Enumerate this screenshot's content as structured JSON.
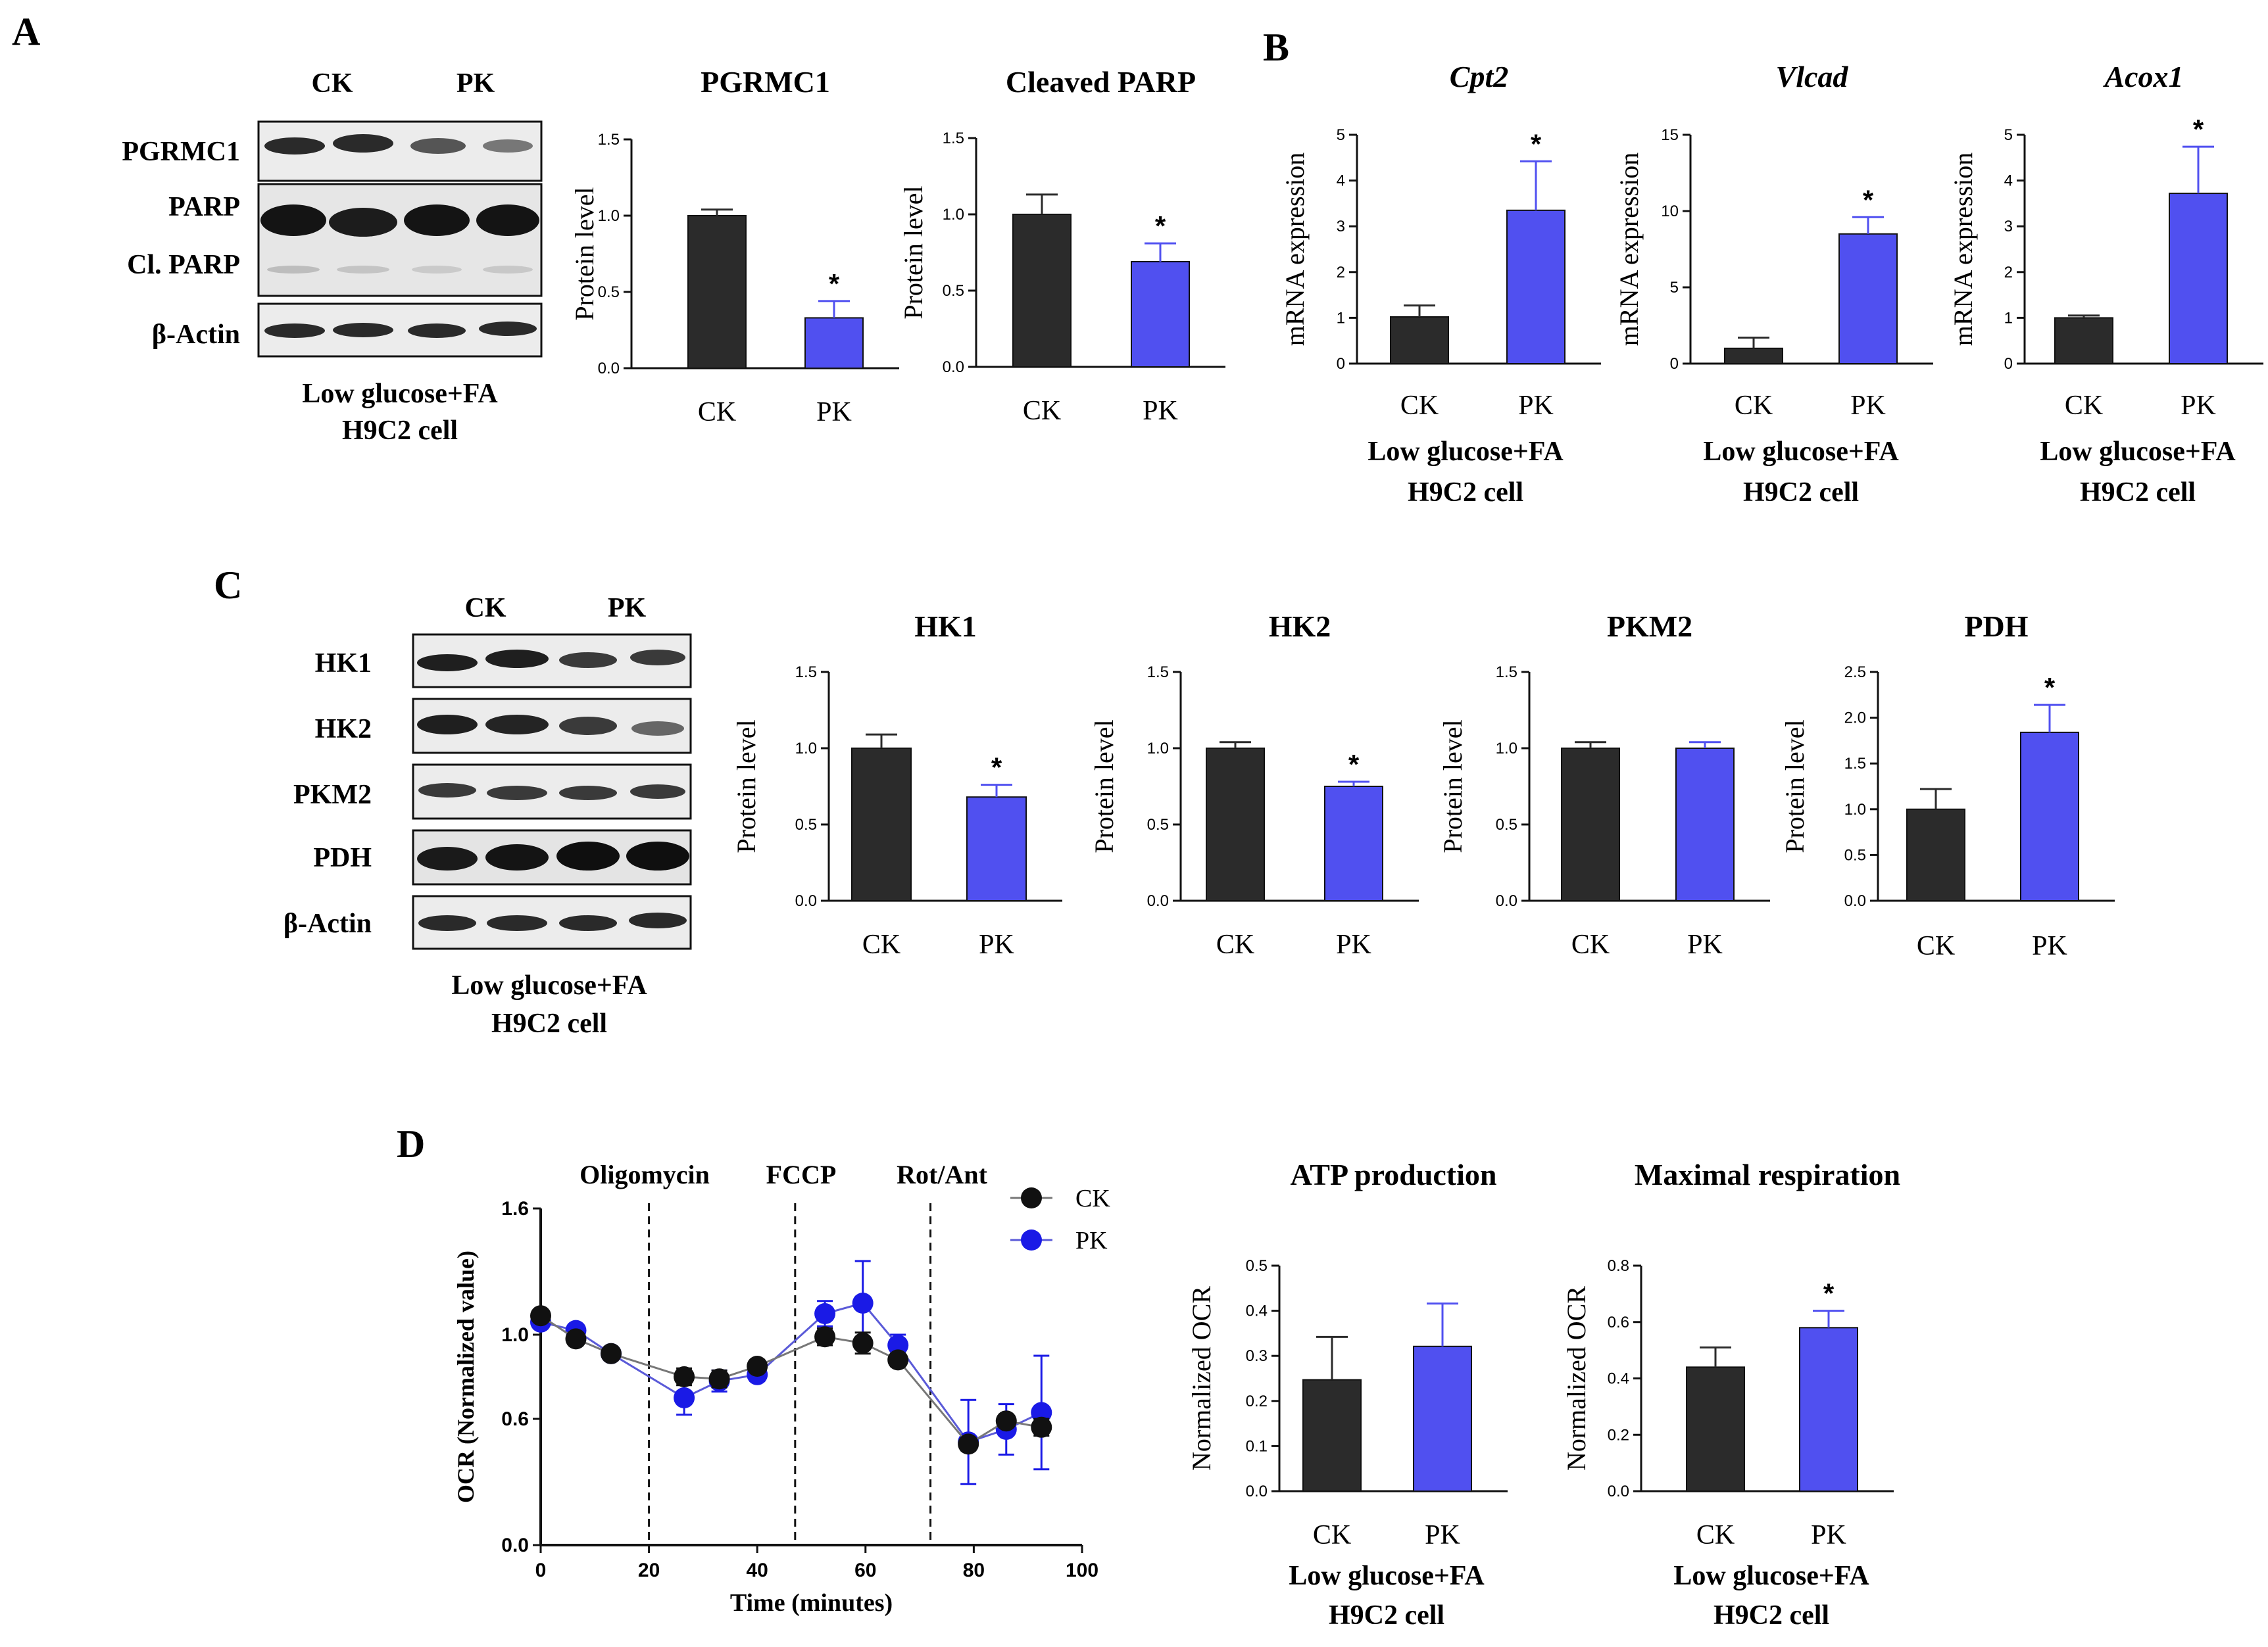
{
  "colors": {
    "ck": "#2b2b2b",
    "pk": "#5050f0",
    "pk_line": "#1a1ae6",
    "blot_bg": "#e8e8e8",
    "band": "#1f1f1f"
  },
  "panels": {
    "A": {
      "letter": "A",
      "blot": {
        "group_labels": [
          "CK",
          "PK"
        ],
        "rows": [
          "PGRMC1",
          "PARP",
          "Cl. PARP",
          "β-Actin"
        ],
        "footer": [
          "Low glucose+FA",
          "H9C2 cell"
        ]
      }
    },
    "B": {
      "letter": "B",
      "footer": [
        "Low glucose+FA",
        "H9C2 cell"
      ]
    },
    "C": {
      "letter": "C",
      "blot": {
        "group_labels": [
          "CK",
          "PK"
        ],
        "rows": [
          "HK1",
          "HK2",
          "PKM2",
          "PDH",
          "β-Actin"
        ],
        "footer": [
          "Low glucose+FA",
          "H9C2 cell"
        ]
      }
    },
    "D": {
      "letter": "D",
      "footer": [
        "Low glucose+FA",
        "H9C2 cell"
      ]
    }
  },
  "chart_data": [
    {
      "id": "a-pgrmc1",
      "type": "bar",
      "title": "PGRMC1",
      "italic": false,
      "ylabel": "Protein level",
      "categories": [
        "CK",
        "PK"
      ],
      "values": [
        1.0,
        0.33
      ],
      "errors": [
        0.04,
        0.11
      ],
      "sig": [
        false,
        true
      ],
      "ylim": [
        0,
        1.5
      ],
      "yticks": [
        "0.0",
        "0.5",
        "1.0",
        "1.5"
      ],
      "tickvals": [
        0,
        0.5,
        1.0,
        1.5
      ]
    },
    {
      "id": "a-parp",
      "type": "bar",
      "title": "Cleaved PARP",
      "italic": false,
      "ylabel": "Protein level",
      "categories": [
        "CK",
        "PK"
      ],
      "values": [
        1.0,
        0.69
      ],
      "errors": [
        0.13,
        0.12
      ],
      "sig": [
        false,
        true
      ],
      "ylim": [
        0,
        1.5
      ],
      "yticks": [
        "0.0",
        "0.5",
        "1.0",
        "1.5"
      ],
      "tickvals": [
        0,
        0.5,
        1.0,
        1.5
      ]
    },
    {
      "id": "b-cpt2",
      "type": "bar",
      "title": "Cpt2",
      "italic": true,
      "ylabel": "mRNA expression",
      "categories": [
        "CK",
        "PK"
      ],
      "values": [
        1.02,
        3.35
      ],
      "errors": [
        0.25,
        1.07
      ],
      "sig": [
        false,
        true
      ],
      "ylim": [
        0,
        5
      ],
      "yticks": [
        "0",
        "1",
        "2",
        "3",
        "4",
        "5"
      ],
      "tickvals": [
        0,
        1,
        2,
        3,
        4,
        5
      ]
    },
    {
      "id": "b-vlcad",
      "type": "bar",
      "title": "Vlcad",
      "italic": true,
      "ylabel": "mRNA expression",
      "categories": [
        "CK",
        "PK"
      ],
      "values": [
        1.0,
        8.5
      ],
      "errors": [
        0.7,
        1.1
      ],
      "sig": [
        false,
        true
      ],
      "ylim": [
        0,
        15
      ],
      "yticks": [
        "0",
        "5",
        "10",
        "15"
      ],
      "tickvals": [
        0,
        5,
        10,
        15
      ]
    },
    {
      "id": "b-acox1",
      "type": "bar",
      "title": "Acox1",
      "italic": true,
      "ylabel": "mRNA expression",
      "categories": [
        "CK",
        "PK"
      ],
      "values": [
        1.0,
        3.72
      ],
      "errors": [
        0.05,
        1.02
      ],
      "sig": [
        false,
        true
      ],
      "ylim": [
        0,
        5
      ],
      "yticks": [
        "0",
        "1",
        "2",
        "3",
        "4",
        "5"
      ],
      "tickvals": [
        0,
        1,
        2,
        3,
        4,
        5
      ]
    },
    {
      "id": "c-hk1",
      "type": "bar",
      "title": "HK1",
      "italic": false,
      "ylabel": "Protein level",
      "categories": [
        "CK",
        "PK"
      ],
      "values": [
        1.0,
        0.68
      ],
      "errors": [
        0.09,
        0.08
      ],
      "sig": [
        false,
        true
      ],
      "ylim": [
        0,
        1.5
      ],
      "yticks": [
        "0.0",
        "0.5",
        "1.0",
        "1.5"
      ],
      "tickvals": [
        0,
        0.5,
        1.0,
        1.5
      ]
    },
    {
      "id": "c-hk2",
      "type": "bar",
      "title": "HK2",
      "italic": false,
      "ylabel": "Protein level",
      "categories": [
        "CK",
        "PK"
      ],
      "values": [
        1.0,
        0.75
      ],
      "errors": [
        0.04,
        0.03
      ],
      "sig": [
        false,
        true
      ],
      "ylim": [
        0,
        1.5
      ],
      "yticks": [
        "0.0",
        "0.5",
        "1.0",
        "1.5"
      ],
      "tickvals": [
        0,
        0.5,
        1.0,
        1.5
      ]
    },
    {
      "id": "c-pkm2",
      "type": "bar",
      "title": "PKM2",
      "italic": false,
      "ylabel": "Protein level",
      "categories": [
        "CK",
        "PK"
      ],
      "values": [
        1.0,
        1.0
      ],
      "errors": [
        0.04,
        0.04
      ],
      "sig": [
        false,
        false
      ],
      "ylim": [
        0,
        1.5
      ],
      "yticks": [
        "0.0",
        "0.5",
        "1.0",
        "1.5"
      ],
      "tickvals": [
        0,
        0.5,
        1.0,
        1.5
      ]
    },
    {
      "id": "c-pdh",
      "type": "bar",
      "title": "PDH",
      "italic": false,
      "ylabel": "Protein level",
      "categories": [
        "CK",
        "PK"
      ],
      "values": [
        1.0,
        1.84
      ],
      "errors": [
        0.22,
        0.3
      ],
      "sig": [
        false,
        true
      ],
      "ylim": [
        0,
        2.5
      ],
      "yticks": [
        "0.0",
        "0.5",
        "1.0",
        "1.5",
        "2.0",
        "2.5"
      ],
      "tickvals": [
        0,
        0.5,
        1.0,
        1.5,
        2.0,
        2.5
      ]
    },
    {
      "id": "d-ocr",
      "type": "line",
      "title": "",
      "xlabel": "Time (minutes)",
      "ylabel": "OCR (Normalized value)",
      "xlim": [
        0,
        100
      ],
      "ylim": [
        0.0,
        1.6
      ],
      "xticks": [
        "0",
        "20",
        "40",
        "60",
        "80",
        "100"
      ],
      "xtickvals": [
        0,
        20,
        40,
        60,
        80,
        100
      ],
      "yticks": [
        "0.0",
        "0.6",
        "1.0",
        "1.6"
      ],
      "ytickvals": [
        0.0,
        0.6,
        1.0,
        1.6
      ],
      "x": [
        0,
        6.5,
        13,
        26.5,
        33,
        40,
        52.5,
        59.5,
        66,
        79,
        86,
        92.5
      ],
      "injections": [
        {
          "x": 20,
          "label": "Oligomycin"
        },
        {
          "x": 47,
          "label": "FCCP"
        },
        {
          "x": 72,
          "label": "Rot/Ant"
        }
      ],
      "series": [
        {
          "name": "CK",
          "values": [
            1.09,
            0.98,
            0.91,
            0.8,
            0.79,
            0.85,
            0.99,
            0.96,
            0.88,
            0.48,
            0.59,
            0.56
          ],
          "errors": [
            0.02,
            0.02,
            0.02,
            0.04,
            0.04,
            0.02,
            0.04,
            0.05,
            0.03,
            0.03,
            0.03,
            0.04
          ]
        },
        {
          "name": "PK",
          "values": [
            1.06,
            1.02,
            0.91,
            0.7,
            0.78,
            0.81,
            1.1,
            1.15,
            0.95,
            0.49,
            0.55,
            0.63
          ],
          "errors": [
            0.02,
            0.02,
            0.02,
            0.08,
            0.05,
            0.03,
            0.06,
            0.2,
            0.05,
            0.2,
            0.12,
            0.27
          ]
        }
      ]
    },
    {
      "id": "d-atp",
      "type": "bar",
      "title": "ATP production",
      "italic": false,
      "ylabel": "Normalized OCR",
      "categories": [
        "CK",
        "PK"
      ],
      "values": [
        0.247,
        0.321
      ],
      "errors": [
        0.095,
        0.095
      ],
      "sig": [
        false,
        false
      ],
      "ylim": [
        0,
        0.5
      ],
      "yticks": [
        "0.0",
        "0.1",
        "0.2",
        "0.3",
        "0.4",
        "0.5"
      ],
      "tickvals": [
        0,
        0.1,
        0.2,
        0.3,
        0.4,
        0.5
      ]
    },
    {
      "id": "d-max",
      "type": "bar",
      "title": "Maximal respiration",
      "italic": false,
      "ylabel": "Normalized OCR",
      "categories": [
        "CK",
        "PK"
      ],
      "values": [
        0.44,
        0.58
      ],
      "errors": [
        0.07,
        0.06
      ],
      "sig": [
        false,
        true
      ],
      "ylim": [
        0,
        0.8
      ],
      "yticks": [
        "0.0",
        "0.2",
        "0.4",
        "0.6",
        "0.8"
      ],
      "tickvals": [
        0,
        0.2,
        0.4,
        0.6,
        0.8
      ]
    }
  ]
}
